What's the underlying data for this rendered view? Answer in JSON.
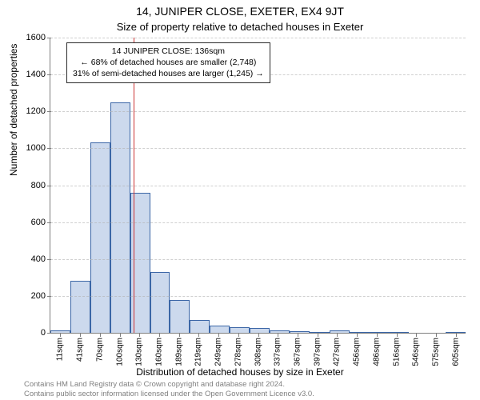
{
  "chart": {
    "type": "histogram",
    "title": "14, JUNIPER CLOSE, EXETER, EX4 9JT",
    "subtitle": "Size of property relative to detached houses in Exeter",
    "xlabel": "Distribution of detached houses by size in Exeter",
    "ylabel": "Number of detached properties",
    "background_color": "#ffffff",
    "bar_fill": "#ccd9ed",
    "bar_border": "#3b66a6",
    "grid_color": "#b0b0b0",
    "axis_color": "#7f7f7f",
    "ylim": [
      0,
      1600
    ],
    "yticks": [
      0,
      200,
      400,
      600,
      800,
      1000,
      1200,
      1400,
      1600
    ],
    "categories": [
      "11sqm",
      "41sqm",
      "70sqm",
      "100sqm",
      "130sqm",
      "160sqm",
      "189sqm",
      "219sqm",
      "249sqm",
      "278sqm",
      "308sqm",
      "337sqm",
      "367sqm",
      "397sqm",
      "427sqm",
      "456sqm",
      "486sqm",
      "516sqm",
      "546sqm",
      "575sqm",
      "605sqm"
    ],
    "values": [
      15,
      280,
      1030,
      1250,
      760,
      330,
      180,
      70,
      40,
      30,
      25,
      15,
      10,
      5,
      15,
      5,
      5,
      3,
      0,
      0,
      3
    ],
    "marker": {
      "color": "#cc3333",
      "category_index_after": 4,
      "fraction_into_bin": 0.2
    },
    "annotation": {
      "line1": "14 JUNIPER CLOSE: 136sqm",
      "line2": "← 68% of detached houses are smaller (2,748)",
      "line3": "31% of semi-detached houses are larger (1,245) →",
      "border_color": "#2a2a2a",
      "background": "#ffffff"
    }
  },
  "footnote": {
    "line1": "Contains HM Land Registry data © Crown copyright and database right 2024.",
    "line2": "Contains public sector information licensed under the Open Government Licence v3.0.",
    "color": "#808080"
  }
}
